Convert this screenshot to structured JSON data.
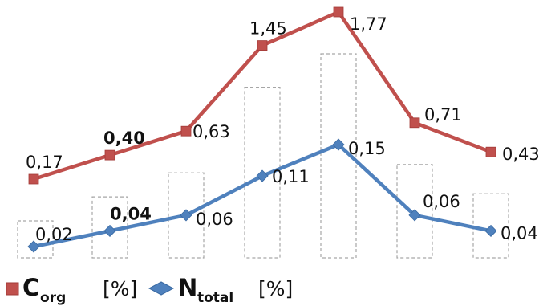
{
  "chart_data": {
    "type": "line",
    "categories": [
      "",
      "",
      "",
      "",
      "",
      "",
      ""
    ],
    "series": [
      {
        "name": "Corg",
        "name_main": "C",
        "name_sub": "org",
        "unit": "[%]",
        "color": "#c0504d",
        "marker": "square",
        "values": [
          0.17,
          0.4,
          0.63,
          1.45,
          1.77,
          0.71,
          0.43
        ],
        "labels": [
          "0,17",
          "0,40",
          "0,63",
          "1,45",
          "1,77",
          "0,71",
          "0,43"
        ],
        "bold_labels": [
          false,
          true,
          false,
          false,
          false,
          false,
          false
        ]
      },
      {
        "name": "Ntotal",
        "name_main": "N",
        "name_sub": "total",
        "unit": "[%]",
        "color": "#4f81bd",
        "marker": "diamond",
        "values": [
          0.02,
          0.04,
          0.06,
          0.11,
          0.15,
          0.06,
          0.04
        ],
        "labels": [
          "0,02",
          "0,04",
          "0,06",
          "0,11",
          "0,15",
          "0,06",
          "0,04"
        ],
        "bold_labels": [
          false,
          true,
          false,
          false,
          false,
          false,
          false
        ]
      }
    ],
    "background_bars": {
      "style": "dashed-outline",
      "color": "#a6a6a6"
    },
    "legend": "bottom-left",
    "grid": false,
    "title": "",
    "xlabel": "",
    "ylabel": ""
  }
}
